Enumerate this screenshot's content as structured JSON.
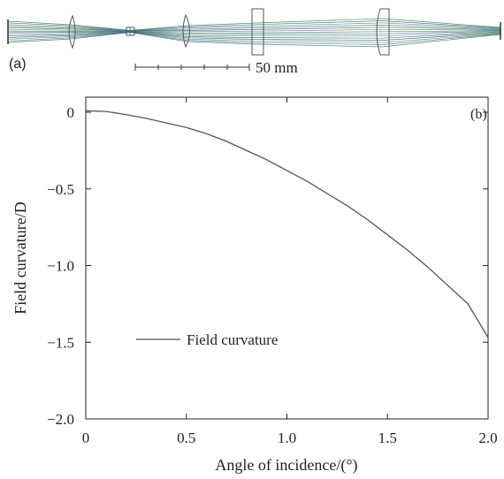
{
  "panel_a": {
    "label": "(a)",
    "scale_bar_label": "50 mm",
    "ray_colors": [
      "#2f8a3a",
      "#2a5fb0",
      "#7a7a7a"
    ]
  },
  "chart_data": {
    "type": "line",
    "panel_label": "(b)",
    "xlabel": "Angle of incidence/(°)",
    "ylabel": "Field curvature/D",
    "xlim": [
      0,
      2.0
    ],
    "ylim": [
      -2.0,
      0.1
    ],
    "x_ticks": [
      0,
      0.5,
      1.0,
      1.5,
      2.0
    ],
    "x_tick_labels": [
      "0",
      "0.5",
      "1.0",
      "1.5",
      "2.0"
    ],
    "y_ticks": [
      0,
      -0.5,
      -1.0,
      -1.5,
      -2.0
    ],
    "y_tick_labels": [
      "0",
      "−0.5",
      "−1.0",
      "−1.5",
      "−2.0"
    ],
    "grid": false,
    "legend_position": "lower-left",
    "series": [
      {
        "name": "Field curvature",
        "color": "#555555",
        "x": [
          0,
          0.1,
          0.2,
          0.3,
          0.4,
          0.5,
          0.6,
          0.7,
          0.8,
          0.9,
          1.0,
          1.1,
          1.2,
          1.3,
          1.4,
          1.5,
          1.6,
          1.7,
          1.8,
          1.9,
          2.0
        ],
        "y": [
          0.01,
          0.005,
          -0.015,
          -0.04,
          -0.07,
          -0.1,
          -0.14,
          -0.19,
          -0.25,
          -0.31,
          -0.38,
          -0.45,
          -0.53,
          -0.61,
          -0.7,
          -0.8,
          -0.9,
          -1.01,
          -1.13,
          -1.25,
          -1.47
        ]
      }
    ]
  }
}
